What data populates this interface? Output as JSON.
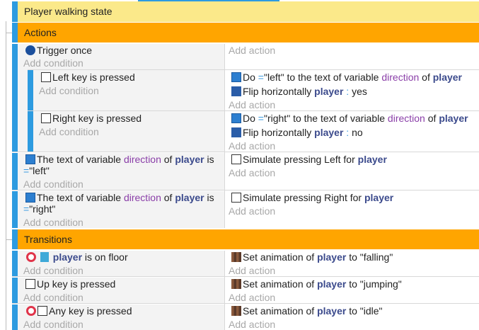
{
  "header": {
    "group": "Player walking state"
  },
  "sections": [
    {
      "title": "Actions",
      "events": [
        {
          "conditions": [
            [
              "Trigger once"
            ]
          ],
          "add_condition": "Add condition",
          "add_action": "Add action",
          "sub_events": [
            {
              "conditions": [
                [
                  "Left key is pressed"
                ]
              ],
              "add_condition": "Add condition",
              "actions": [
                [
                  "Do",
                  "=",
                  "\"left\"",
                  "to the text of variable",
                  "direction",
                  "of",
                  "player"
                ],
                [
                  "Flip horizontally",
                  "player",
                  ":",
                  "yes"
                ]
              ],
              "add_action": "Add action"
            },
            {
              "conditions": [
                [
                  "Right key is pressed"
                ]
              ],
              "add_condition": "Add condition",
              "actions": [
                [
                  "Do",
                  "=",
                  "\"right\"",
                  "to the text of variable",
                  "direction",
                  "of",
                  "player"
                ],
                [
                  "Flip horizontally",
                  "player",
                  ":",
                  "no"
                ]
              ],
              "add_action": "Add action"
            }
          ]
        },
        {
          "conditions": [
            [
              "The text of variable",
              "direction",
              "of",
              "player",
              "is"
            ],
            [
              "=",
              "\"left\""
            ]
          ],
          "add_condition": "Add condition",
          "actions": [
            [
              "Simulate pressing Left for",
              "player"
            ]
          ],
          "add_action": "Add action"
        },
        {
          "conditions": [
            [
              "The text of variable",
              "direction",
              "of",
              "player",
              "is"
            ],
            [
              "=",
              "\"right\""
            ]
          ],
          "add_condition": "Add condition",
          "actions": [
            [
              "Simulate pressing Right for",
              "player"
            ]
          ],
          "add_action": "Add action"
        }
      ]
    },
    {
      "title": "Transitions",
      "events": [
        {
          "conditions": [
            [
              "player",
              "is on floor"
            ]
          ],
          "add_condition": "Add condition",
          "actions": [
            [
              "Set animation of",
              "player",
              "to",
              "\"falling\""
            ]
          ],
          "add_action": "Add action"
        },
        {
          "conditions": [
            [
              "Up key is pressed"
            ]
          ],
          "add_condition": "Add condition",
          "actions": [
            [
              "Set animation of",
              "player",
              "to",
              "\"jumping\""
            ]
          ],
          "add_action": "Add action"
        },
        {
          "conditions": [
            [
              "Any key is pressed"
            ]
          ],
          "add_condition": "Add condition",
          "actions": [
            [
              "Set animation of",
              "player",
              "to",
              "\"idle\""
            ]
          ],
          "add_action": "Add action"
        }
      ]
    }
  ]
}
